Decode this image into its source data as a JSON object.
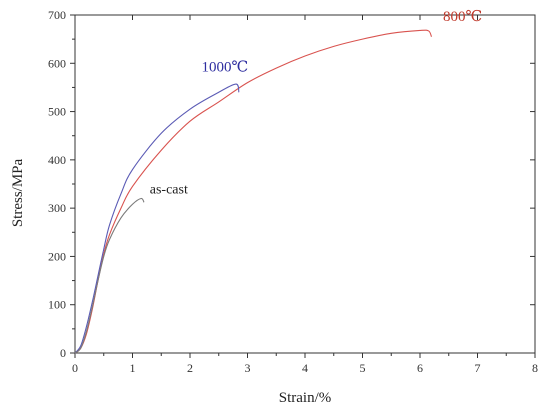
{
  "chart_data": {
    "type": "line",
    "title": "",
    "xlabel": "Strain/%",
    "ylabel": "Stress/MPa",
    "xlim": [
      0,
      8
    ],
    "ylim": [
      0,
      700
    ],
    "xticks": [
      0,
      1,
      2,
      3,
      4,
      5,
      6,
      7,
      8
    ],
    "yticks": [
      0,
      100,
      200,
      300,
      400,
      500,
      600,
      700
    ],
    "grid": false,
    "legend": "none",
    "series": [
      {
        "name": "800℃",
        "color": "#d9534f",
        "label_color": "#c0392b",
        "x": [
          0,
          0.1,
          0.2,
          0.3,
          0.4,
          0.5,
          0.6,
          0.8,
          1.0,
          1.5,
          2.0,
          2.5,
          3.0,
          3.5,
          4.0,
          4.5,
          5.0,
          5.5,
          6.0,
          6.15,
          6.2
        ],
        "y": [
          0,
          10,
          40,
          90,
          150,
          205,
          245,
          300,
          345,
          420,
          480,
          520,
          560,
          590,
          615,
          635,
          650,
          662,
          668,
          667,
          655
        ]
      },
      {
        "name": "1000℃",
        "color": "#5b5bb5",
        "label_color": "#2e2ea0",
        "x": [
          0,
          0.1,
          0.2,
          0.3,
          0.4,
          0.5,
          0.6,
          0.8,
          1.0,
          1.5,
          2.0,
          2.5,
          2.8,
          2.85
        ],
        "y": [
          0,
          15,
          55,
          105,
          160,
          215,
          265,
          330,
          380,
          455,
          505,
          540,
          557,
          540
        ]
      },
      {
        "name": "as-cast",
        "color": "#7a7a7a",
        "label_color": "#222222",
        "x": [
          0,
          0.1,
          0.2,
          0.3,
          0.4,
          0.5,
          0.6,
          0.8,
          1.0,
          1.15,
          1.2
        ],
        "y": [
          0,
          10,
          45,
          95,
          150,
          200,
          235,
          280,
          308,
          320,
          312
        ]
      }
    ]
  }
}
